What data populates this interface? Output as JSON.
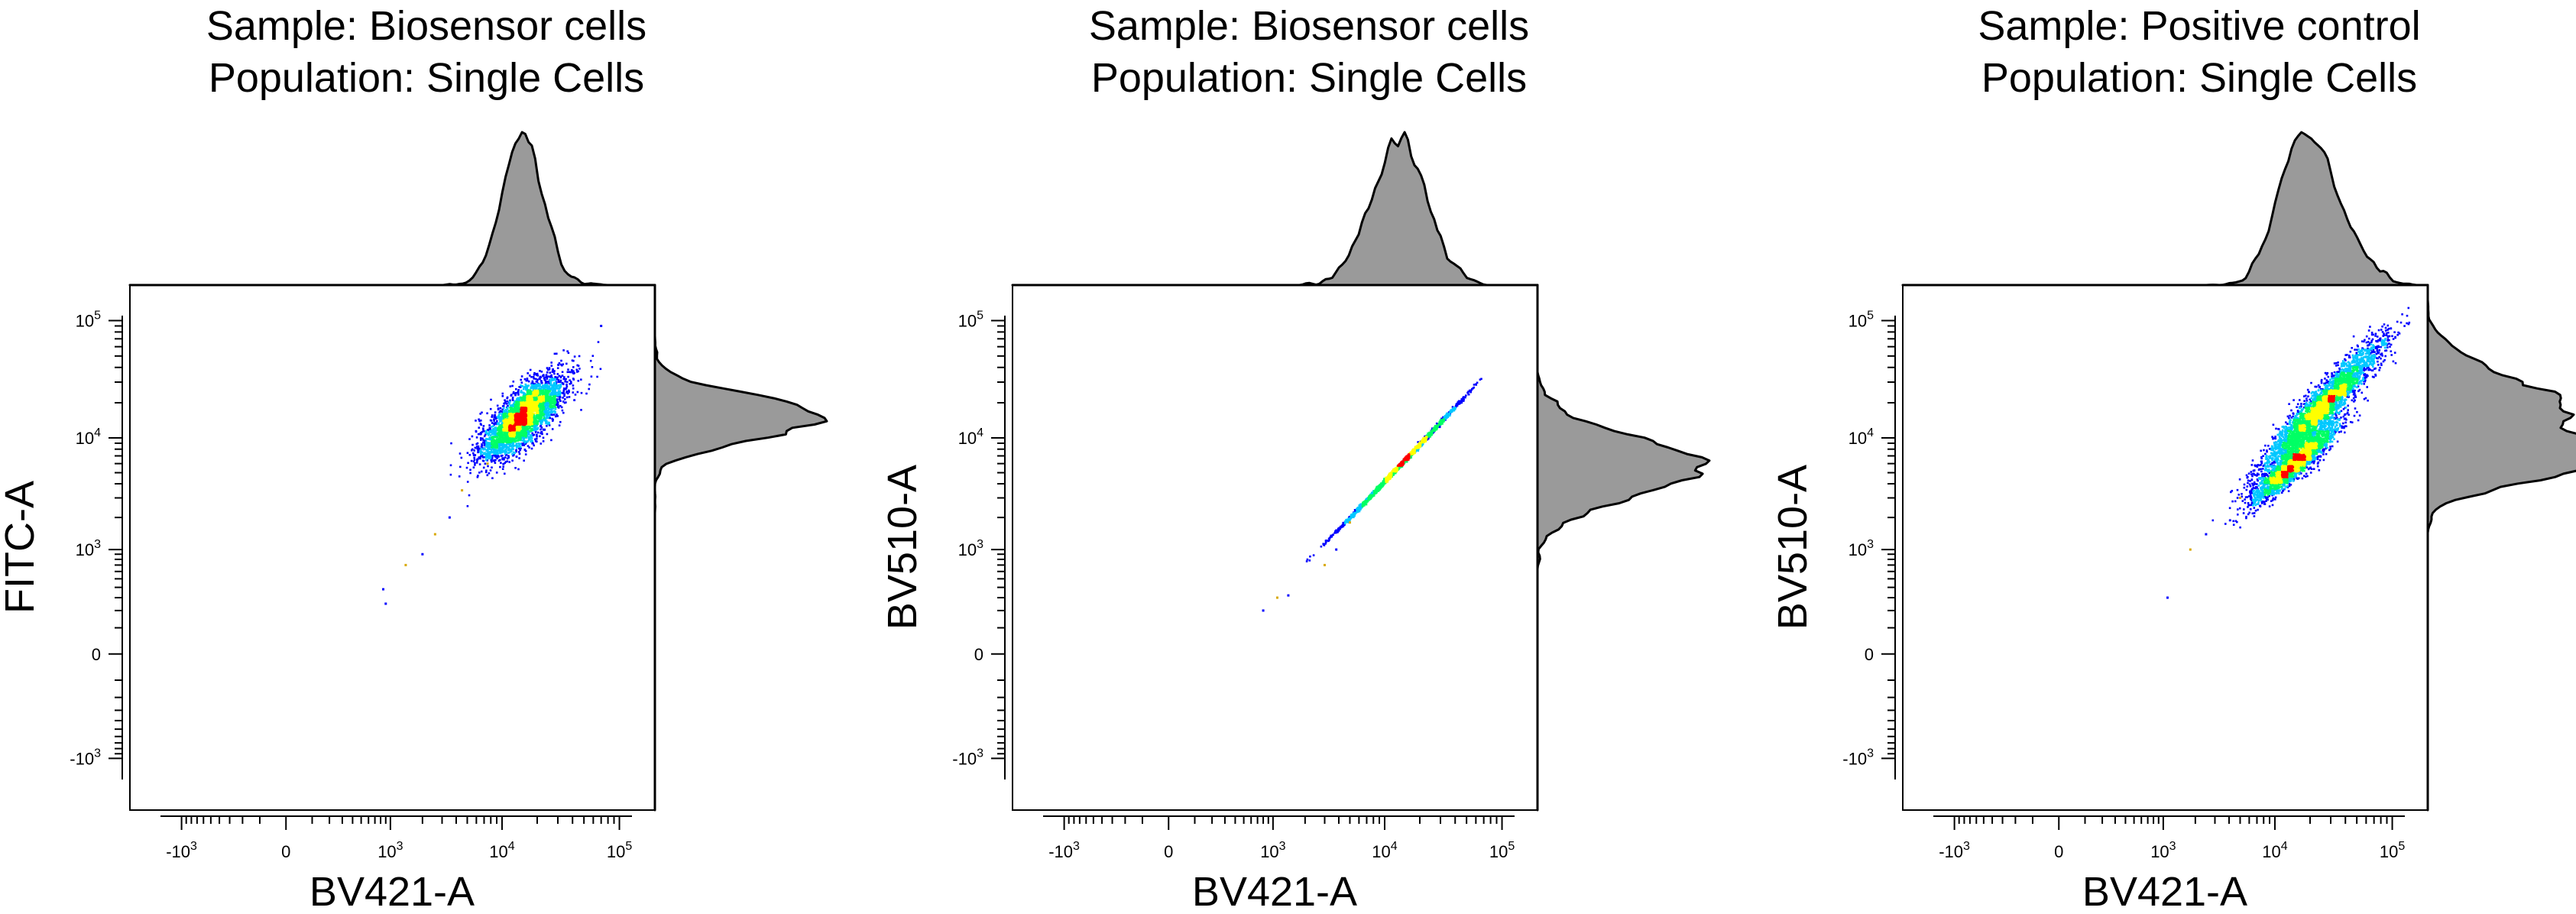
{
  "chart_data": [
    {
      "type": "scatter",
      "title": [
        "Sample: Biosensor cells",
        "Population: Single Cells"
      ],
      "xlabel": "BV421-A",
      "ylabel": "FITC-A",
      "x_scale": "biexponential",
      "y_scale": "biexponential",
      "x_ticks": [
        "-10^3",
        "0",
        "10^3",
        "10^4",
        "10^5"
      ],
      "y_ticks": [
        "10^5",
        "10^4",
        "10^3",
        "0",
        "-10^3"
      ],
      "x_range": [
        -3000,
        200000
      ],
      "y_range": [
        -3000,
        200000
      ],
      "marginal_histograms": [
        "top",
        "right"
      ],
      "populations": [
        {
          "center": [
            15000,
            15000
          ],
          "x_spread": [
            6000,
            45000
          ],
          "y_spread": [
            7000,
            40000
          ],
          "shape": "elliptical cluster"
        }
      ],
      "sparse_points": [
        [
          850,
          380
        ],
        [
          1400,
          700
        ],
        [
          2000,
          900
        ],
        [
          2600,
          1400
        ],
        [
          3500,
          2000
        ],
        [
          4500,
          3500
        ],
        [
          900,
          250
        ],
        [
          7500,
          6000
        ],
        [
          70000,
          90000
        ]
      ]
    },
    {
      "type": "scatter",
      "title": [
        "Sample: Biosensor cells",
        "Population: Single Cells"
      ],
      "xlabel": "BV421-A",
      "ylabel": "BV510-A",
      "x_scale": "biexponential",
      "y_scale": "biexponential",
      "x_ticks": [
        "-10^3",
        "0",
        "10^3",
        "10^4",
        "10^5"
      ],
      "y_ticks": [
        "10^5",
        "10^4",
        "10^3",
        "0",
        "-10^3"
      ],
      "x_range": [
        -3000,
        200000
      ],
      "y_range": [
        -3000,
        200000
      ],
      "marginal_histograms": [
        "top",
        "right"
      ],
      "populations": [
        {
          "center": [
            13000,
            5500
          ],
          "x_spread": [
            5000,
            80000
          ],
          "y_spread": [
            1800,
            35000
          ],
          "shape": "narrow diagonal line"
        }
      ],
      "sparse_points": [
        [
          800,
          200
        ],
        [
          1100,
          300
        ],
        [
          1400,
          320
        ],
        [
          3000,
          700
        ],
        [
          3800,
          1000
        ],
        [
          5000,
          1800
        ]
      ]
    },
    {
      "type": "scatter",
      "title": [
        "Sample: Positive control",
        "Population: Single Cells"
      ],
      "xlabel": "BV421-A",
      "ylabel": "BV510-A",
      "x_scale": "biexponential",
      "y_scale": "biexponential",
      "x_ticks": [
        "-10^3",
        "0",
        "10^3",
        "10^4",
        "10^5"
      ],
      "y_ticks": [
        "10^5",
        "10^4",
        "10^3",
        "0",
        "-10^3"
      ],
      "x_range": [
        -3000,
        200000
      ],
      "y_range": [
        -3000,
        200000
      ],
      "marginal_histograms": [
        "top",
        "right"
      ],
      "populations": [
        {
          "center": [
            25000,
            18000
          ],
          "x_spread": [
            6000,
            110000
          ],
          "y_spread": [
            3000,
            70000
          ],
          "shape": "upper diagonal band"
        },
        {
          "center": [
            15000,
            6000
          ],
          "x_spread": [
            5000,
            45000
          ],
          "y_spread": [
            2000,
            15000
          ],
          "shape": "lower diagonal band"
        }
      ],
      "sparse_points": [
        [
          1100,
          300
        ],
        [
          1800,
          1000
        ],
        [
          2500,
          1400
        ],
        [
          5000,
          3000
        ]
      ]
    }
  ],
  "colors": {
    "density_low": "#0000ff",
    "density_mid": "#00c8ff",
    "density_midhigh": "#00ff64",
    "density_high": "#ffff00",
    "density_peak": "#ff0000",
    "histogram_fill": "#9a9a9a",
    "histogram_line": "#000000",
    "frame": "#000000"
  }
}
